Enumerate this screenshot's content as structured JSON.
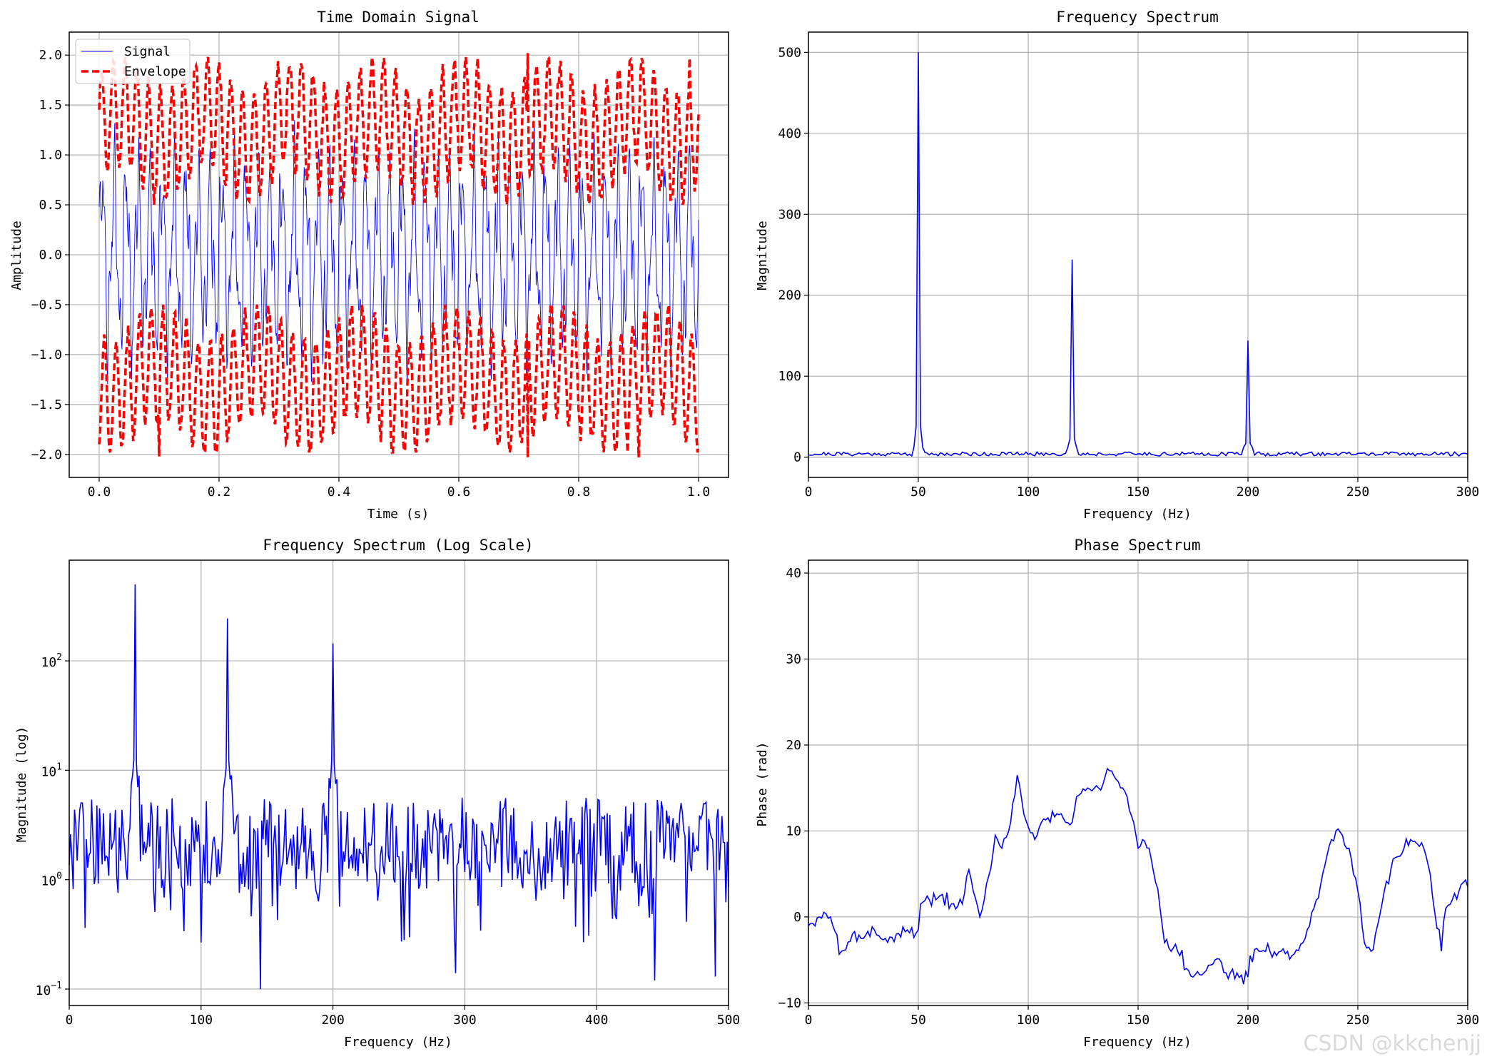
{
  "colors": {
    "signal": "#0000ff",
    "envelope": "#ff0000",
    "grid": "#b0b0b0"
  },
  "watermark": "CSDN @kkchenjj",
  "chart_data": [
    {
      "id": "time",
      "type": "line",
      "title": "Time Domain Signal",
      "xlabel": "Time (s)",
      "ylabel": "Amplitude",
      "xlim": [
        -0.05,
        1.05
      ],
      "ylim": [
        -2.23,
        2.23
      ],
      "xticks": [
        0.0,
        0.2,
        0.4,
        0.6,
        0.8,
        1.0
      ],
      "xtick_labels": [
        "0.0",
        "0.2",
        "0.4",
        "0.6",
        "0.8",
        "1.0"
      ],
      "yticks": [
        -2.0,
        -1.5,
        -1.0,
        -0.5,
        0.0,
        0.5,
        1.0,
        1.5,
        2.0
      ],
      "ytick_labels": [
        "−2.0",
        "−1.5",
        "−1.0",
        "−0.5",
        "0.0",
        "0.5",
        "1.0",
        "1.5",
        "2.0"
      ],
      "legend": {
        "placement": "top-left",
        "entries": [
          "Signal",
          "Envelope"
        ]
      },
      "series": [
        {
          "name": "Signal",
          "style": "solid-thin",
          "description": "sum of 50 Hz, 120 Hz and 200 Hz sinusoids plus noise, amplitude about ±1.2"
        },
        {
          "name": "Envelope",
          "style": "dashed-thick",
          "description": "envelope oscillating between about ±0.5 and ±2.0"
        }
      ],
      "peaks": [
        {
          "x": 0.1,
          "y": -2.02
        },
        {
          "x": 0.715,
          "y": -2.03
        },
        {
          "x": 0.715,
          "y": 2.02
        },
        {
          "x": 0.9,
          "y": -2.03
        },
        {
          "x": 0.985,
          "y": 1.97
        }
      ]
    },
    {
      "id": "spectrum",
      "type": "line",
      "title": "Frequency Spectrum",
      "xlabel": "Frequency (Hz)",
      "ylabel": "Magnitude",
      "xlim": [
        0,
        300
      ],
      "ylim": [
        -25,
        525
      ],
      "xticks": [
        0,
        50,
        100,
        150,
        200,
        250,
        300
      ],
      "xtick_labels": [
        "0",
        "50",
        "100",
        "150",
        "200",
        "250",
        "300"
      ],
      "yticks": [
        0,
        100,
        200,
        300,
        400,
        500
      ],
      "ytick_labels": [
        "0",
        "100",
        "200",
        "300",
        "400",
        "500"
      ],
      "peaks": [
        {
          "x": 50,
          "y": 500
        },
        {
          "x": 120,
          "y": 244
        },
        {
          "x": 200,
          "y": 144
        }
      ],
      "baseline": "noise floor about 2–8"
    },
    {
      "id": "logspec",
      "type": "line",
      "title": "Frequency Spectrum (Log Scale)",
      "xlabel": "Frequency (Hz)",
      "ylabel": "Magnitude (log)",
      "xscale": "linear",
      "yscale": "log",
      "xlim": [
        0,
        500
      ],
      "ylim_log10": [
        -1.15,
        2.92
      ],
      "xticks": [
        0,
        100,
        200,
        300,
        400,
        500
      ],
      "xtick_labels": [
        "0",
        "100",
        "200",
        "300",
        "400",
        "500"
      ],
      "yticks_log10": [
        -1,
        0,
        1,
        2
      ],
      "ytick_labels": [
        {
          "base": "10",
          "exp": "−1"
        },
        {
          "base": "10",
          "exp": "0"
        },
        {
          "base": "10",
          "exp": "1"
        },
        {
          "base": "10",
          "exp": "2"
        }
      ],
      "peaks": [
        {
          "x": 50,
          "y": 500
        },
        {
          "x": 120,
          "y": 244
        },
        {
          "x": 200,
          "y": 144
        }
      ],
      "dips": [
        {
          "x": 145,
          "y": 0.1
        },
        {
          "x": 444,
          "y": 0.12
        },
        {
          "x": 490,
          "y": 0.13
        },
        {
          "x": 293,
          "y": 0.14
        }
      ]
    },
    {
      "id": "phase",
      "type": "line",
      "title": "Phase Spectrum",
      "xlabel": "Frequency (Hz)",
      "ylabel": "Phase (rad)",
      "xlim": [
        0,
        300
      ],
      "ylim": [
        -10.3,
        41.5
      ],
      "xticks": [
        0,
        50,
        100,
        150,
        200,
        250,
        300
      ],
      "xtick_labels": [
        "0",
        "50",
        "100",
        "150",
        "200",
        "250",
        "300"
      ],
      "yticks": [
        -10,
        0,
        10,
        20,
        30,
        40
      ],
      "ytick_labels": [
        "−10",
        "0",
        "10",
        "20",
        "30",
        "40"
      ],
      "points": [
        [
          0,
          -1
        ],
        [
          5,
          0
        ],
        [
          10,
          0
        ],
        [
          15,
          -4
        ],
        [
          20,
          -2
        ],
        [
          25,
          -2.5
        ],
        [
          30,
          -1.5
        ],
        [
          35,
          -2.5
        ],
        [
          40,
          -2
        ],
        [
          45,
          -1.5
        ],
        [
          50,
          -1.5
        ],
        [
          51,
          1.5
        ],
        [
          55,
          2
        ],
        [
          60,
          2.5
        ],
        [
          65,
          1.5
        ],
        [
          70,
          1.5
        ],
        [
          73,
          5.5
        ],
        [
          75,
          3
        ],
        [
          78,
          0
        ],
        [
          80,
          2
        ],
        [
          85,
          9.5
        ],
        [
          88,
          8
        ],
        [
          92,
          11
        ],
        [
          95,
          16.5
        ],
        [
          98,
          12
        ],
        [
          100,
          10.5
        ],
        [
          103,
          9
        ],
        [
          106,
          11
        ],
        [
          110,
          11
        ],
        [
          113,
          12
        ],
        [
          117,
          11
        ],
        [
          120,
          11
        ],
        [
          122,
          14
        ],
        [
          127,
          15
        ],
        [
          132,
          15
        ],
        [
          137,
          17
        ],
        [
          140,
          16
        ],
        [
          143,
          15
        ],
        [
          145,
          14
        ],
        [
          148,
          11
        ],
        [
          150,
          8
        ],
        [
          152,
          9
        ],
        [
          155,
          8
        ],
        [
          158,
          4
        ],
        [
          160,
          1
        ],
        [
          162,
          -3
        ],
        [
          165,
          -4
        ],
        [
          168,
          -4
        ],
        [
          172,
          -6
        ],
        [
          175,
          -7
        ],
        [
          180,
          -6.5
        ],
        [
          185,
          -5
        ],
        [
          190,
          -6.5
        ],
        [
          195,
          -6.5
        ],
        [
          200,
          -7
        ],
        [
          201,
          -4.5
        ],
        [
          205,
          -4
        ],
        [
          210,
          -4
        ],
        [
          215,
          -4
        ],
        [
          220,
          -4.5
        ],
        [
          225,
          -3
        ],
        [
          230,
          1
        ],
        [
          235,
          6
        ],
        [
          238,
          9
        ],
        [
          240,
          10
        ],
        [
          243,
          9.5
        ],
        [
          246,
          8
        ],
        [
          250,
          3
        ],
        [
          253,
          -3
        ],
        [
          256,
          -4
        ],
        [
          258,
          -2
        ],
        [
          262,
          3
        ],
        [
          265,
          5.5
        ],
        [
          268,
          7
        ],
        [
          271,
          8
        ],
        [
          274,
          9
        ],
        [
          277,
          8.5
        ],
        [
          280,
          8
        ],
        [
          282,
          6
        ],
        [
          285,
          0.5
        ],
        [
          288,
          -4
        ],
        [
          290,
          1
        ],
        [
          293,
          2
        ],
        [
          296,
          3
        ],
        [
          298,
          4
        ],
        [
          300,
          3.5
        ]
      ]
    }
  ]
}
